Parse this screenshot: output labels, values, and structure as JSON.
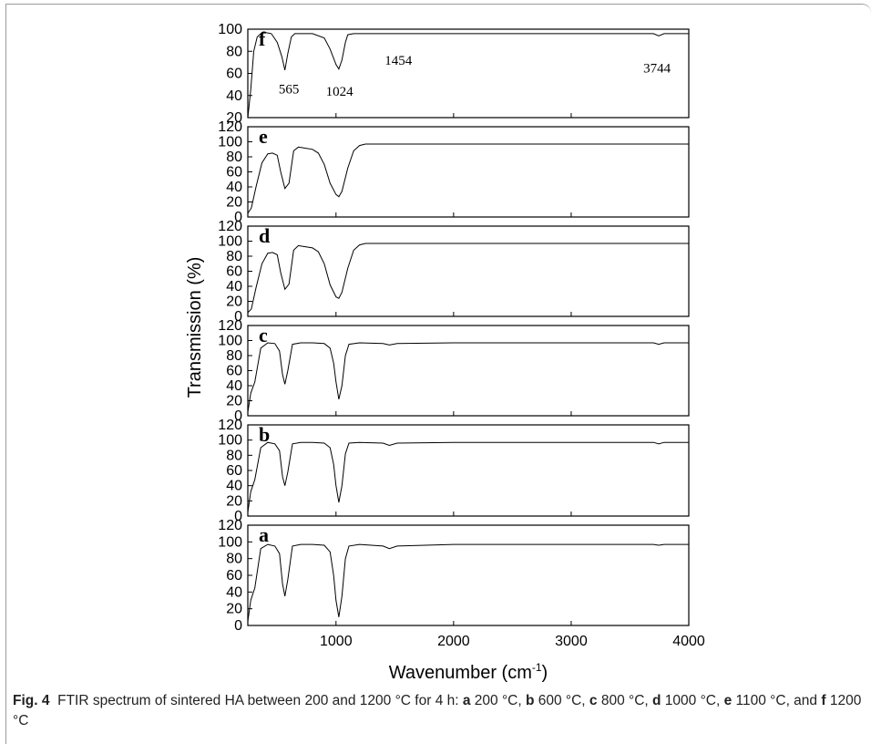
{
  "chart_data": {
    "type": "line",
    "xlabel": "Wavenumber (cm",
    "xlabel_sup": "-1",
    "xlabel_close": ")",
    "ylabel": "Transmission (%)",
    "xlim": [
      250,
      4000
    ],
    "x_ticks": [
      1000,
      2000,
      3000,
      4000
    ],
    "x_tick_labels": [
      "1000",
      "2000",
      "3000",
      "4000"
    ],
    "panels": [
      {
        "letter": "f",
        "ylim": [
          20,
          100
        ],
        "y_ticks": [
          20,
          40,
          60,
          80,
          100
        ],
        "y_tick_labels": [
          "20",
          "40",
          "60",
          "80",
          "100"
        ],
        "annotations": [
          {
            "text": "565",
            "x": 600,
            "y": 46
          },
          {
            "text": "1024",
            "x": 1030,
            "y": 44
          },
          {
            "text": "1454",
            "x": 1530,
            "y": 72
          },
          {
            "text": "3744",
            "x": 3730,
            "y": 65
          }
        ],
        "x": [
          250,
          275,
          300,
          330,
          360,
          400,
          450,
          500,
          540,
          565,
          590,
          620,
          650,
          700,
          800,
          900,
          950,
          1000,
          1024,
          1050,
          1080,
          1100,
          1150,
          1454,
          2000,
          3000,
          3700,
          3744,
          3790,
          4000
        ],
        "y": [
          20,
          45,
          80,
          93,
          96,
          97,
          96,
          88,
          75,
          63,
          78,
          93,
          96,
          96,
          96,
          92,
          82,
          68,
          64,
          72,
          88,
          95,
          96,
          96,
          96,
          96,
          96,
          94,
          96,
          96
        ]
      },
      {
        "letter": "e",
        "ylim": [
          0,
          120
        ],
        "y_ticks": [
          0,
          20,
          40,
          60,
          80,
          100,
          120
        ],
        "y_tick_labels": [
          "0",
          "20",
          "40",
          "60",
          "80",
          "100",
          "120"
        ],
        "x": [
          250,
          280,
          320,
          370,
          420,
          460,
          500,
          530,
          565,
          600,
          640,
          680,
          720,
          800,
          850,
          900,
          950,
          1000,
          1024,
          1050,
          1100,
          1150,
          1200,
          1250,
          1300,
          2000,
          3000,
          4000
        ],
        "y": [
          5,
          12,
          40,
          72,
          84,
          85,
          82,
          60,
          38,
          45,
          88,
          93,
          92,
          90,
          85,
          70,
          45,
          30,
          27,
          34,
          65,
          88,
          95,
          97,
          97,
          97,
          97,
          97
        ],
        "bumps": []
      },
      {
        "letter": "d",
        "ylim": [
          0,
          120
        ],
        "y_ticks": [
          0,
          20,
          40,
          60,
          80,
          100,
          120
        ],
        "y_tick_labels": [
          "0",
          "20",
          "40",
          "60",
          "80",
          "100",
          "120"
        ],
        "x": [
          250,
          280,
          320,
          370,
          420,
          460,
          500,
          530,
          565,
          600,
          640,
          680,
          720,
          800,
          850,
          900,
          950,
          1000,
          1024,
          1050,
          1100,
          1150,
          1200,
          1250,
          1300,
          2000,
          3000,
          4000
        ],
        "y": [
          5,
          10,
          38,
          70,
          84,
          85,
          82,
          58,
          36,
          43,
          88,
          94,
          93,
          91,
          86,
          70,
          42,
          26,
          24,
          32,
          64,
          88,
          95,
          97,
          97,
          97,
          97,
          97
        ]
      },
      {
        "letter": "c",
        "ylim": [
          0,
          120
        ],
        "y_ticks": [
          0,
          20,
          40,
          60,
          80,
          100,
          120
        ],
        "y_tick_labels": [
          "0",
          "20",
          "40",
          "60",
          "80",
          "100",
          "120"
        ],
        "x": [
          250,
          275,
          310,
          360,
          420,
          480,
          520,
          545,
          565,
          590,
          630,
          700,
          800,
          900,
          950,
          980,
          1000,
          1024,
          1050,
          1080,
          1110,
          1200,
          1400,
          1454,
          1520,
          2000,
          3000,
          3700,
          3744,
          3790,
          4000
        ],
        "y": [
          5,
          30,
          45,
          90,
          97,
          96,
          86,
          55,
          42,
          60,
          95,
          97,
          97,
          96,
          90,
          70,
          45,
          22,
          40,
          80,
          95,
          97,
          96,
          94,
          96,
          97,
          97,
          97,
          95,
          97,
          97
        ]
      },
      {
        "letter": "b",
        "ylim": [
          0,
          120
        ],
        "y_ticks": [
          0,
          20,
          40,
          60,
          80,
          100,
          120
        ],
        "y_tick_labels": [
          "0",
          "20",
          "40",
          "60",
          "80",
          "100",
          "120"
        ],
        "x": [
          250,
          275,
          310,
          360,
          420,
          480,
          520,
          545,
          565,
          590,
          630,
          700,
          800,
          900,
          950,
          980,
          1000,
          1024,
          1050,
          1080,
          1110,
          1200,
          1400,
          1454,
          1520,
          2000,
          3000,
          3700,
          3744,
          3790,
          4000
        ],
        "y": [
          5,
          32,
          48,
          90,
          97,
          95,
          86,
          52,
          40,
          58,
          95,
          97,
          97,
          96,
          90,
          68,
          40,
          18,
          40,
          82,
          96,
          97,
          96,
          93,
          96,
          97,
          97,
          97,
          95,
          97,
          97
        ]
      },
      {
        "letter": "a",
        "ylim": [
          0,
          120
        ],
        "y_ticks": [
          0,
          20,
          40,
          60,
          80,
          100,
          120
        ],
        "y_tick_labels": [
          "0",
          "20",
          "40",
          "60",
          "80",
          "100",
          "120"
        ],
        "x": [
          250,
          275,
          310,
          360,
          420,
          480,
          520,
          545,
          565,
          590,
          630,
          700,
          800,
          900,
          950,
          980,
          1000,
          1024,
          1050,
          1080,
          1110,
          1200,
          1400,
          1454,
          1520,
          2000,
          3000,
          3700,
          3744,
          3790,
          4000
        ],
        "y": [
          5,
          30,
          45,
          92,
          97,
          95,
          86,
          50,
          35,
          55,
          95,
          97,
          97,
          96,
          88,
          60,
          30,
          10,
          35,
          80,
          95,
          97,
          95,
          92,
          95,
          97,
          97,
          97,
          96,
          97,
          97
        ]
      }
    ]
  },
  "caption": {
    "label": "Fig. 4",
    "text_1": "FTIR spectrum of sintered HA between 200 and 1200 °C for 4 h: ",
    "a_letter": "a",
    "a_text": " 200 °C, ",
    "b_letter": "b",
    "b_text": " 600 °C, ",
    "c_letter": "c",
    "c_text": " 800 °C, ",
    "d_letter": "d",
    "d_text": " 1000 °C, ",
    "e_letter": "e",
    "e_text": " 1100 °C, and ",
    "f_letter": "f",
    "f_text": " 1200 °C"
  }
}
